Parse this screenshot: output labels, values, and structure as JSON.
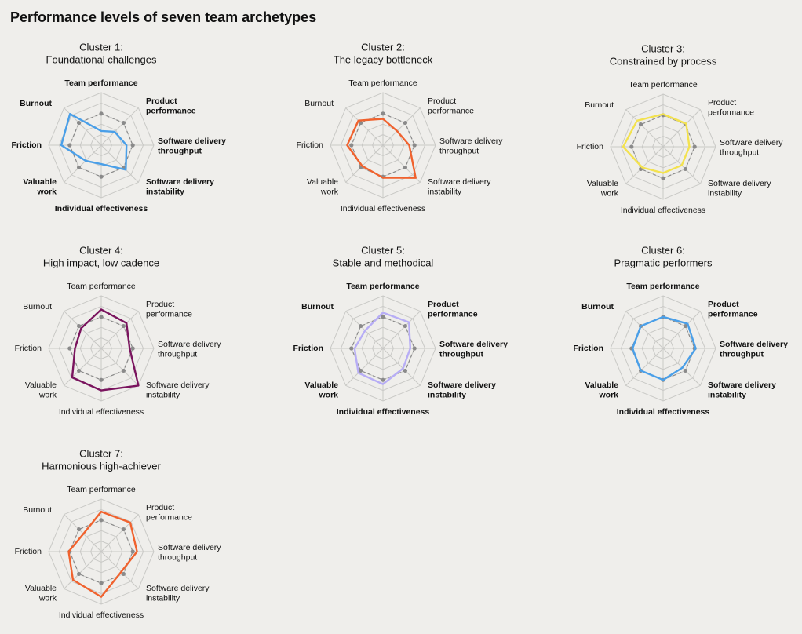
{
  "title": "Performance levels of seven team archetypes",
  "chart_data": [
    {
      "type": "radar",
      "title": [
        "Cluster 1:",
        "Foundational challenges"
      ],
      "bold_labels": true,
      "axes": [
        [
          "Team performance"
        ],
        [
          "Product",
          "performance"
        ],
        [
          "Software delivery",
          "throughput"
        ],
        [
          "Software delivery",
          "instability"
        ],
        [
          "Individual effectiveness"
        ],
        [
          "Valuable",
          "work"
        ],
        [
          "Friction"
        ],
        [
          "Burnout"
        ]
      ],
      "rlim": [
        0,
        5
      ],
      "rings": 5,
      "reference": {
        "color": "#8a8a8a",
        "values": [
          3,
          3,
          3,
          3,
          3,
          3,
          3,
          3
        ]
      },
      "series": [
        {
          "color": "#4a9fe8",
          "values": [
            1.35,
            1.8,
            2.4,
            3.3,
            1.8,
            2.1,
            3.8,
            4.2
          ]
        }
      ]
    },
    {
      "type": "radar",
      "title": [
        "Cluster 2:",
        "The legacy bottleneck"
      ],
      "bold_labels": false,
      "axes": [
        [
          "Team performance"
        ],
        [
          "Product",
          "performance"
        ],
        [
          "Software delivery",
          "throughput"
        ],
        [
          "Software delivery",
          "instability"
        ],
        [
          "Individual effectiveness"
        ],
        [
          "Valuable",
          "work"
        ],
        [
          "Friction"
        ],
        [
          "Burnout"
        ]
      ],
      "rlim": [
        0,
        5
      ],
      "rings": 5,
      "reference": {
        "color": "#8a8a8a",
        "values": [
          3,
          3,
          3,
          3,
          3,
          3,
          3,
          3
        ]
      },
      "series": [
        {
          "color": "#f0622e",
          "values": [
            2.5,
            1.9,
            2.5,
            4.4,
            3.1,
            2.8,
            3.4,
            3.3
          ]
        }
      ]
    },
    {
      "type": "radar",
      "title": [
        "Cluster 3:",
        "Constrained by process"
      ],
      "bold_labels": false,
      "axes": [
        [
          "Team performance"
        ],
        [
          "Product",
          "performance"
        ],
        [
          "Software delivery",
          "throughput"
        ],
        [
          "Software delivery",
          "instability"
        ],
        [
          "Individual effectiveness"
        ],
        [
          "Valuable",
          "work"
        ],
        [
          "Friction"
        ],
        [
          "Burnout"
        ]
      ],
      "rlim": [
        0,
        5
      ],
      "rings": 5,
      "reference": {
        "color": "#8a8a8a",
        "values": [
          3,
          3,
          3,
          3,
          3,
          3,
          3,
          3
        ]
      },
      "series": [
        {
          "color": "#f3e24f",
          "values": [
            3.1,
            3.1,
            2.5,
            2.5,
            2.5,
            2.8,
            3.8,
            3.5
          ]
        }
      ]
    },
    {
      "type": "radar",
      "title": [
        "Cluster 4:",
        "High impact, low cadence"
      ],
      "bold_labels": false,
      "axes": [
        [
          "Team performance"
        ],
        [
          "Product",
          "performance"
        ],
        [
          "Software delivery",
          "throughput"
        ],
        [
          "Software delivery",
          "instability"
        ],
        [
          "Individual effectiveness"
        ],
        [
          "Valuable",
          "work"
        ],
        [
          "Friction"
        ],
        [
          "Burnout"
        ]
      ],
      "rlim": [
        0,
        5
      ],
      "rings": 5,
      "reference": {
        "color": "#8a8a8a",
        "values": [
          3,
          3,
          3,
          3,
          3,
          3,
          3,
          3
        ]
      },
      "series": [
        {
          "color": "#7a145e",
          "values": [
            3.7,
            3.4,
            2.7,
            5,
            4.0,
            3.9,
            2.5,
            2.7
          ]
        }
      ]
    },
    {
      "type": "radar",
      "title": [
        "Cluster 5:",
        "Stable and methodical"
      ],
      "bold_labels": true,
      "axes": [
        [
          "Team performance"
        ],
        [
          "Product",
          "performance"
        ],
        [
          "Software delivery",
          "throughput"
        ],
        [
          "Software delivery",
          "instability"
        ],
        [
          "Individual effectiveness"
        ],
        [
          "Valuable",
          "work"
        ],
        [
          "Friction"
        ],
        [
          "Burnout"
        ]
      ],
      "rlim": [
        0,
        5
      ],
      "rings": 5,
      "reference": {
        "color": "#8a8a8a",
        "values": [
          3,
          3,
          3,
          3,
          3,
          3,
          3,
          3
        ]
      },
      "series": [
        {
          "color": "#b7adf5",
          "values": [
            3.4,
            3.5,
            2.6,
            2.7,
            3.4,
            3.3,
            2.7,
            2.4
          ]
        }
      ]
    },
    {
      "type": "radar",
      "title": [
        "Cluster 6:",
        "Pragmatic performers"
      ],
      "bold_labels": true,
      "axes": [
        [
          "Team performance"
        ],
        [
          "Product",
          "performance"
        ],
        [
          "Software delivery",
          "throughput"
        ],
        [
          "Software delivery",
          "instability"
        ],
        [
          "Individual effectiveness"
        ],
        [
          "Valuable",
          "work"
        ],
        [
          "Friction"
        ],
        [
          "Burnout"
        ]
      ],
      "rlim": [
        0,
        5
      ],
      "rings": 5,
      "reference": {
        "color": "#8a8a8a",
        "values": [
          3,
          3,
          3,
          3,
          3,
          3,
          3,
          3
        ]
      },
      "series": [
        {
          "color": "#4a9fe8",
          "values": [
            3.0,
            3.3,
            3.1,
            2.6,
            3.0,
            3.0,
            2.9,
            3.0
          ]
        }
      ]
    },
    {
      "type": "radar",
      "title": [
        "Cluster 7:",
        "Harmonious high-achiever"
      ],
      "bold_labels": false,
      "axes": [
        [
          "Team performance"
        ],
        [
          "Product",
          "performance"
        ],
        [
          "Software delivery",
          "throughput"
        ],
        [
          "Software delivery",
          "instability"
        ],
        [
          "Individual effectiveness"
        ],
        [
          "Valuable",
          "work"
        ],
        [
          "Friction"
        ],
        [
          "Burnout"
        ]
      ],
      "rlim": [
        0,
        5
      ],
      "rings": 5,
      "reference": {
        "color": "#8a8a8a",
        "values": [
          3,
          3,
          3,
          3,
          3,
          3,
          3,
          3
        ]
      },
      "series": [
        {
          "color": "#f0622e",
          "values": [
            3.8,
            3.9,
            3.4,
            2.7,
            4.3,
            3.8,
            3.1,
            2.4
          ]
        }
      ]
    }
  ]
}
